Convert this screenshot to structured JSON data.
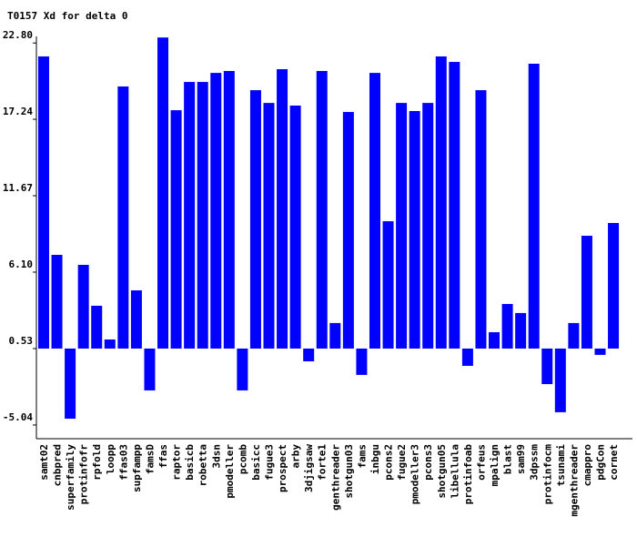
{
  "chart_data": {
    "type": "bar",
    "title": "T0157 Xd for delta 0",
    "color": "#0000ff",
    "categories": [
      "samt02",
      "cnbpred",
      "superfamily",
      "protinfofr",
      "rpfold",
      "loopp",
      "ffas03",
      "supfampp",
      "famsD",
      "ffas",
      "raptor",
      "basicb",
      "robetta",
      "3dsn",
      "pmodeller",
      "pcomb",
      "basicc",
      "fugue3",
      "prospect",
      "arby",
      "3djigsaw",
      "forte1",
      "genthreader",
      "shotgun03",
      "fams",
      "inbgu",
      "pcons2",
      "fugue2",
      "pmodeller3",
      "pcons3",
      "shotgun05",
      "libellula",
      "protinfoab",
      "orfeus",
      "mpalign",
      "blast",
      "sam99",
      "3dpssm",
      "protinfocm",
      "tsunami",
      "mgenthreader",
      "cmappro",
      "pdgCon",
      "cornet"
    ],
    "values": [
      21.82,
      7.36,
      -4.58,
      6.63,
      3.65,
      1.19,
      19.63,
      4.77,
      -2.52,
      23.2,
      17.9,
      19.96,
      19.96,
      20.62,
      20.76,
      -2.52,
      19.36,
      18.43,
      20.89,
      18.24,
      -0.4,
      20.76,
      2.39,
      17.77,
      -1.39,
      20.62,
      9.81,
      18.43,
      17.84,
      18.43,
      21.82,
      21.42,
      -0.73,
      19.36,
      1.72,
      3.78,
      3.12,
      21.29,
      -2.06,
      -4.11,
      2.39,
      8.75,
      0.07,
      9.68
    ],
    "ylim": [
      -6.04,
      23.28
    ],
    "yticks": [
      {
        "value": 22.8,
        "label": "22.80"
      },
      17.24,
      11.67,
      {
        "value": 6.1,
        "label": "6.10"
      },
      0.53,
      -5.04
    ]
  }
}
